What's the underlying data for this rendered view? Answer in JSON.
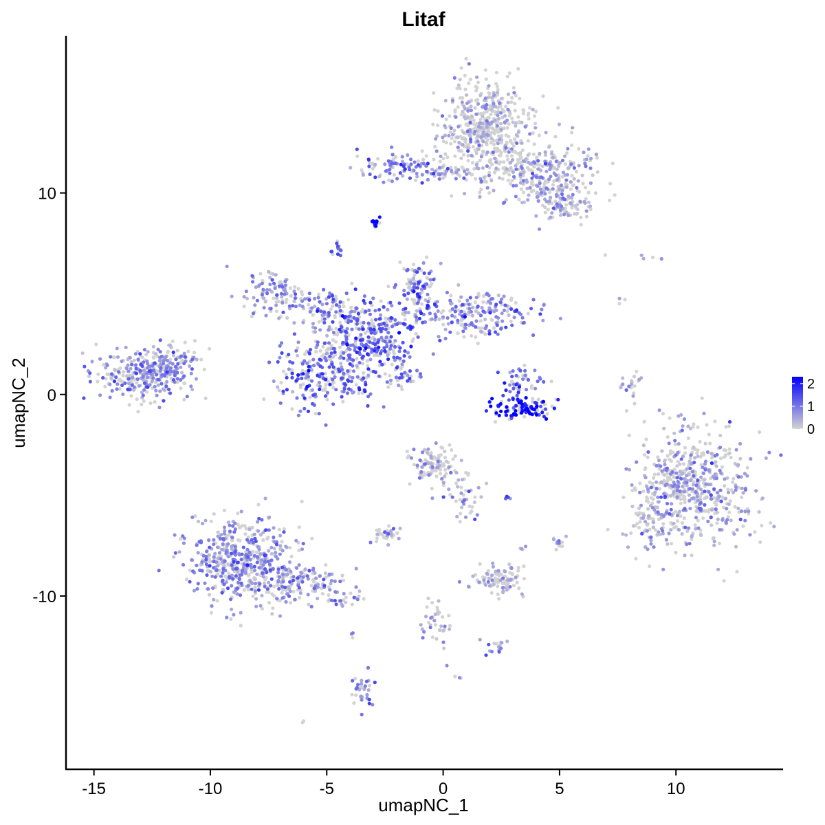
{
  "chart_data": {
    "type": "scatter",
    "title": "Litaf",
    "xlabel": "umapNC_1",
    "ylabel": "umapNC_2",
    "xlim": [
      -16.2,
      14.6
    ],
    "ylim": [
      -18.6,
      17.8
    ],
    "x_ticks": [
      -15,
      -10,
      -5,
      0,
      5,
      10
    ],
    "y_ticks": [
      -10,
      0,
      10
    ],
    "tick_labels_x": [
      "-15",
      "-10",
      "-5",
      "0",
      "5",
      "10"
    ],
    "tick_labels_y": [
      "-10",
      "0",
      "10"
    ],
    "grid": false,
    "legend": {
      "position": "right",
      "type": "colorbar",
      "range": [
        0,
        2.3
      ],
      "ticks": [
        0,
        1,
        2
      ],
      "tick_labels": [
        "0",
        "1",
        "2"
      ],
      "low_color": "#D3D3D3",
      "high_color": "#0000FF"
    },
    "clusters": [
      {
        "cx": 1.8,
        "cy": 13.2,
        "sx": 0.9,
        "sy": 1.3,
        "n": 500,
        "expr": 0.1
      },
      {
        "cx": 4.2,
        "cy": 11.0,
        "sx": 1.2,
        "sy": 0.9,
        "n": 300,
        "expr": 0.35
      },
      {
        "cx": 5.2,
        "cy": 9.4,
        "sx": 0.6,
        "sy": 0.4,
        "n": 80,
        "expr": 0.3
      },
      {
        "cx": -2.0,
        "cy": 11.3,
        "sx": 1.0,
        "sy": 0.35,
        "n": 90,
        "expr": 0.9
      },
      {
        "cx": -0.2,
        "cy": 11.0,
        "sx": 0.8,
        "sy": 0.2,
        "n": 40,
        "expr": 0.6
      },
      {
        "cx": -2.9,
        "cy": 8.55,
        "sx": 0.1,
        "sy": 0.1,
        "n": 14,
        "expr": 2.2
      },
      {
        "cx": -4.6,
        "cy": 7.2,
        "sx": 0.15,
        "sy": 0.25,
        "n": 15,
        "expr": 1.2
      },
      {
        "cx": -12.8,
        "cy": 1.0,
        "sx": 1.0,
        "sy": 0.6,
        "n": 300,
        "expr": 0.7
      },
      {
        "cx": -11.7,
        "cy": 1.7,
        "sx": 0.6,
        "sy": 0.5,
        "n": 60,
        "expr": 0.5
      },
      {
        "cx": -7.2,
        "cy": 5.0,
        "sx": 0.8,
        "sy": 0.6,
        "n": 110,
        "expr": 0.6
      },
      {
        "cx": -5.0,
        "cy": 1.0,
        "sx": 1.0,
        "sy": 0.9,
        "n": 260,
        "expr": 1.0
      },
      {
        "cx": -3.0,
        "cy": 2.6,
        "sx": 0.9,
        "sy": 0.9,
        "n": 260,
        "expr": 1.1
      },
      {
        "cx": -4.5,
        "cy": 4.0,
        "sx": 0.9,
        "sy": 0.6,
        "n": 120,
        "expr": 0.9
      },
      {
        "cx": -1.2,
        "cy": 5.0,
        "sx": 0.5,
        "sy": 0.8,
        "n": 120,
        "expr": 1.0
      },
      {
        "cx": 1.5,
        "cy": 4.0,
        "sx": 1.2,
        "sy": 0.5,
        "n": 200,
        "expr": 0.8
      },
      {
        "cx": -1.8,
        "cy": 0.9,
        "sx": 0.4,
        "sy": 0.3,
        "n": 30,
        "expr": 0.9
      },
      {
        "cx": 3.5,
        "cy": -0.7,
        "sx": 0.7,
        "sy": 0.25,
        "n": 110,
        "expr": 2.0
      },
      {
        "cx": 3.3,
        "cy": 0.6,
        "sx": 0.4,
        "sy": 0.4,
        "n": 45,
        "expr": 1.2
      },
      {
        "cx": 10.8,
        "cy": -4.6,
        "sx": 1.2,
        "sy": 1.4,
        "n": 560,
        "expr": 0.4
      },
      {
        "cx": 8.9,
        "cy": -5.8,
        "sx": 0.5,
        "sy": 0.8,
        "n": 80,
        "expr": 0.3
      },
      {
        "cx": 8.1,
        "cy": 0.4,
        "sx": 0.25,
        "sy": 0.5,
        "n": 20,
        "expr": 0.2
      },
      {
        "cx": -0.4,
        "cy": -3.5,
        "sx": 0.5,
        "sy": 0.5,
        "n": 110,
        "expr": 0.2
      },
      {
        "cx": 0.9,
        "cy": -4.9,
        "sx": 0.4,
        "sy": 0.6,
        "n": 40,
        "expr": 0.4
      },
      {
        "cx": -8.6,
        "cy": -8.3,
        "sx": 1.1,
        "sy": 1.1,
        "n": 520,
        "expr": 0.7
      },
      {
        "cx": -6.2,
        "cy": -9.4,
        "sx": 1.1,
        "sy": 0.5,
        "n": 140,
        "expr": 0.6
      },
      {
        "cx": -4.3,
        "cy": -10.2,
        "sx": 0.4,
        "sy": 0.2,
        "n": 20,
        "expr": 0.7
      },
      {
        "cx": -2.5,
        "cy": -6.9,
        "sx": 0.35,
        "sy": 0.25,
        "n": 35,
        "expr": 0.4
      },
      {
        "cx": 2.4,
        "cy": -9.2,
        "sx": 0.5,
        "sy": 0.4,
        "n": 100,
        "expr": 0.2
      },
      {
        "cx": 5.0,
        "cy": -7.3,
        "sx": 0.15,
        "sy": 0.2,
        "n": 12,
        "expr": 0.3
      },
      {
        "cx": 2.2,
        "cy": -12.5,
        "sx": 0.3,
        "sy": 0.2,
        "n": 15,
        "expr": 0.8
      },
      {
        "cx": -3.5,
        "cy": -14.7,
        "sx": 0.25,
        "sy": 0.5,
        "n": 35,
        "expr": 0.7
      },
      {
        "cx": -0.3,
        "cy": -11.2,
        "sx": 0.4,
        "sy": 0.6,
        "n": 40,
        "expr": 0.3
      },
      {
        "cx": 9.1,
        "cy": 6.8,
        "sx": 0.5,
        "sy": 0.15,
        "n": 4,
        "expr": 0.0
      },
      {
        "cx": 7.7,
        "cy": 4.7,
        "sx": 0.1,
        "sy": 0.2,
        "n": 3,
        "expr": 0.0
      },
      {
        "cx": 7.0,
        "cy": 6.9,
        "sx": 0.05,
        "sy": 0.05,
        "n": 1,
        "expr": 0.0
      },
      {
        "cx": -6.0,
        "cy": -16.2,
        "sx": 0.1,
        "sy": 0.1,
        "n": 2,
        "expr": 0.0
      },
      {
        "cx": 0.6,
        "cy": -14.0,
        "sx": 0.1,
        "sy": 0.1,
        "n": 3,
        "expr": 0.5
      },
      {
        "cx": 2.8,
        "cy": -5.1,
        "sx": 0.1,
        "sy": 0.1,
        "n": 4,
        "expr": 1.0
      },
      {
        "cx": 3.4,
        "cy": -7.6,
        "sx": 0.1,
        "sy": 0.1,
        "n": 4,
        "expr": 0.4
      },
      {
        "cx": -3.9,
        "cy": -11.9,
        "sx": 0.05,
        "sy": 0.15,
        "n": 3,
        "expr": 0.6
      }
    ]
  }
}
